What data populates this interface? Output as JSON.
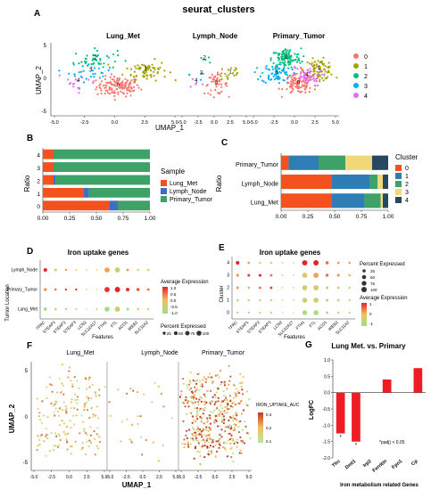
{
  "panelA": {
    "letter": "A",
    "title": "seurat_clusters",
    "facets": [
      "Lung_Met",
      "Lymph_Node",
      "Primary_Tumor"
    ],
    "xlabel": "UMAP_1",
    "ylabel": "UMAP_2",
    "xticks": [
      "-5.0",
      "-2.5",
      "0.0",
      "2.5",
      "5.0"
    ],
    "yticks": [
      "5",
      "0",
      "-5"
    ],
    "legend": [
      {
        "label": "0",
        "color": "#F8766D"
      },
      {
        "label": "1",
        "color": "#A3A500"
      },
      {
        "label": "2",
        "color": "#00BF7D"
      },
      {
        "label": "3",
        "color": "#00B0F6"
      },
      {
        "label": "4",
        "color": "#E76BF3"
      }
    ]
  },
  "panelB": {
    "letter": "B",
    "ylabel": "Ratio",
    "legend_title": "Sample",
    "series": [
      {
        "name": "Lung_Met",
        "color": "#F4511E"
      },
      {
        "name": "Lymph_Node",
        "color": "#3F6EC5"
      },
      {
        "name": "Primary_Tumor",
        "color": "#3EA167"
      }
    ],
    "categories": [
      "4",
      "3",
      "2",
      "1",
      "0"
    ],
    "xticks": [
      "0.00",
      "0.25",
      "0.50",
      "0.75",
      "1.00"
    ]
  },
  "panelC": {
    "letter": "C",
    "ylabel": "Ratio",
    "legend_title": "Cluster",
    "series": [
      {
        "name": "0",
        "color": "#F4511E"
      },
      {
        "name": "1",
        "color": "#2E7DB5"
      },
      {
        "name": "2",
        "color": "#3EA167"
      },
      {
        "name": "3",
        "color": "#F0D77A"
      },
      {
        "name": "4",
        "color": "#284760"
      }
    ],
    "categories": [
      "Primary_Tumor",
      "Lymph_Node",
      "Lung_Met"
    ],
    "xticks": [
      "0.00",
      "0.25",
      "0.50",
      "0.75",
      "1.00"
    ]
  },
  "panelD": {
    "letter": "D",
    "title": "Iron uptake genes",
    "ylabel": "Tumor Location",
    "xlabel": "Features",
    "rows": [
      "Lymph_Node",
      "Primary_Tumor",
      "Lung_Met"
    ],
    "genes": [
      "TFRC",
      "STEAP1",
      "STEAP2",
      "STEAP3",
      "LCN2",
      "SLC22A17",
      "FTH1",
      "FTL",
      "ACO1",
      "IREB2",
      "SLC11A2"
    ],
    "legend_expr_title": "Average Expression",
    "legend_expr_ticks": [
      "1.0",
      "0.5",
      "0.0",
      "-0.5",
      "-1.0"
    ],
    "legend_pct_title": "Percent Expressed",
    "legend_pct_ticks": [
      "25",
      "50",
      "75",
      "100"
    ]
  },
  "panelE": {
    "letter": "E",
    "title": "Iron uptake genes",
    "ylabel": "Cluster",
    "xlabel": "Features",
    "rows": [
      "4",
      "3",
      "2",
      "1",
      "0"
    ],
    "genes": [
      "TFRC",
      "STEAP1",
      "STEAP2",
      "STEAP3",
      "LCN2",
      "SLC22A17",
      "FTH1",
      "FTL",
      "ACO1",
      "IREB2",
      "SLC11A2"
    ],
    "legend_pct_title": "Percent Expressed",
    "legend_pct_ticks": [
      "25",
      "50",
      "75",
      "100"
    ],
    "legend_expr_title": "Average Expression",
    "legend_expr_ticks": [
      "1",
      "0",
      "-1"
    ]
  },
  "panelF": {
    "letter": "F",
    "facets": [
      "Lung_Met",
      "Lymph_Node",
      "Primary_Tumor"
    ],
    "xlabel": "UMAP_1",
    "ylabel": "UMAP_2",
    "xticks": [
      "-5.0",
      "-2.5",
      "0.0",
      "2.5",
      "5.0"
    ],
    "yticks": [
      "5",
      "0",
      "-5"
    ],
    "legend_title": "IRON_UPTAKE_AUC",
    "legend_ticks": [
      "0.3",
      "0.2",
      "0.1"
    ]
  },
  "panelG": {
    "letter": "G",
    "title": "Lung Met. vs. Primary",
    "ylabel": "LogFC",
    "xlabel": "Iron metabolism related Genes",
    "note": "*padj) < 0.05",
    "yticks": [
      "1.0",
      "0.5",
      "0.0",
      "-0.5",
      "-1.0",
      "-1.5",
      "-2.0"
    ],
    "bar_color": "#EE1C25"
  },
  "chart_data": [
    {
      "type": "scatter",
      "title": "seurat_clusters",
      "facets": [
        "Lung_Met",
        "Lymph_Node",
        "Primary_Tumor"
      ],
      "xlabel": "UMAP_1",
      "ylabel": "UMAP_2",
      "xlim": [
        -5,
        5
      ],
      "ylim": [
        -7,
        7
      ],
      "series": [
        {
          "name": "0",
          "centers": {
            "Lung_Met": [
              0.3,
              -1.5
            ],
            "Lymph_Node": [
              0.3,
              -1.0
            ],
            "Primary_Tumor": [
              0.5,
              -1.0
            ]
          }
        },
        {
          "name": "1",
          "centers": {
            "Lung_Met": [
              2.6,
              1.8
            ],
            "Lymph_Node": [
              2.5,
              1.2
            ],
            "Primary_Tumor": [
              3.0,
              2.0
            ]
          }
        },
        {
          "name": "2",
          "centers": {
            "Lung_Met": [
              -1.6,
              4.0
            ],
            "Lymph_Node": [
              -1.5,
              4.0
            ],
            "Primary_Tumor": [
              -1.0,
              4.2
            ]
          }
        },
        {
          "name": "3",
          "centers": {
            "Lung_Met": [
              -2.0,
              1.5
            ],
            "Lymph_Node": [
              -2.0,
              1.0
            ],
            "Primary_Tumor": [
              -2.2,
              1.2
            ]
          }
        },
        {
          "name": "4",
          "centers": {
            "Lung_Met": [
              -3.0,
              -0.5
            ],
            "Lymph_Node": [
              -2.8,
              -0.5
            ],
            "Primary_Tumor": [
              1.5,
              0.6
            ]
          }
        }
      ]
    },
    {
      "type": "bar",
      "stacked": true,
      "horizontal": true,
      "ylabel": "Ratio",
      "categories": [
        "4",
        "3",
        "2",
        "1",
        "0"
      ],
      "xlim": [
        0,
        1
      ],
      "series": [
        {
          "name": "Lung_Met",
          "values": [
            0.1,
            0.1,
            0.1,
            0.38,
            0.62
          ]
        },
        {
          "name": "Lymph_Node",
          "values": [
            0.0,
            0.0,
            0.02,
            0.05,
            0.08
          ]
        },
        {
          "name": "Primary_Tumor",
          "values": [
            0.9,
            0.9,
            0.88,
            0.57,
            0.3
          ]
        }
      ]
    },
    {
      "type": "bar",
      "stacked": true,
      "horizontal": true,
      "ylabel": "Ratio",
      "categories": [
        "Primary_Tumor",
        "Lymph_Node",
        "Lung_Met"
      ],
      "xlim": [
        0,
        1
      ],
      "series": [
        {
          "name": "0",
          "values": [
            0.07,
            0.47,
            0.47
          ]
        },
        {
          "name": "1",
          "values": [
            0.28,
            0.36,
            0.31
          ]
        },
        {
          "name": "2",
          "values": [
            0.25,
            0.07,
            0.15
          ]
        },
        {
          "name": "3",
          "values": [
            0.25,
            0.05,
            0.02
          ]
        },
        {
          "name": "4",
          "values": [
            0.15,
            0.05,
            0.05
          ]
        }
      ]
    },
    {
      "type": "scatter",
      "title": "Iron uptake genes",
      "xlabel": "Features",
      "ylabel": "Tumor Location",
      "categories_x": [
        "TFRC",
        "STEAP1",
        "STEAP2",
        "STEAP3",
        "LCN2",
        "SLC22A17",
        "FTH1",
        "FTL",
        "ACO1",
        "IREB2",
        "SLC11A2"
      ],
      "categories_y": [
        "Lymph_Node",
        "Primary_Tumor",
        "Lung_Met"
      ],
      "avg_expression": [
        [
          1.0,
          -0.5,
          0.3,
          -0.2,
          0.2,
          -0.5,
          0.2,
          -0.6,
          0.3,
          -0.5,
          0.1
        ],
        [
          0.3,
          0.6,
          0.8,
          0.9,
          0.0,
          0.0,
          0.9,
          1.0,
          0.9,
          0.7,
          0.5
        ],
        [
          -1.0,
          -0.6,
          -1.0,
          -0.6,
          -0.5,
          0.2,
          -1.0,
          -0.4,
          -1.0,
          -0.3,
          -0.4
        ]
      ],
      "pct_expressed": [
        [
          40,
          20,
          10,
          5,
          2,
          2,
          90,
          95,
          15,
          10,
          8
        ],
        [
          25,
          10,
          10,
          10,
          3,
          2,
          95,
          98,
          40,
          25,
          15
        ],
        [
          30,
          12,
          8,
          6,
          2,
          3,
          85,
          95,
          20,
          12,
          10
        ]
      ]
    },
    {
      "type": "scatter",
      "title": "Iron uptake genes",
      "xlabel": "Features",
      "ylabel": "Cluster",
      "categories_x": [
        "TFRC",
        "STEAP1",
        "STEAP2",
        "STEAP3",
        "LCN2",
        "SLC22A17",
        "FTH1",
        "FTL",
        "ACO1",
        "IREB2",
        "SLC11A2"
      ],
      "categories_y": [
        "4",
        "3",
        "2",
        "1",
        "0"
      ],
      "avg_expression": [
        [
          1.0,
          0.2,
          -0.5,
          -0.2,
          -0.5,
          -0.5,
          1.0,
          1.0,
          0.5,
          0.2,
          0.3
        ],
        [
          0.2,
          0.8,
          1.0,
          0.5,
          0.0,
          -0.5,
          -0.2,
          0.2,
          0.5,
          0.3,
          0.2
        ],
        [
          0.2,
          0.2,
          0.5,
          0.8,
          0.0,
          -0.5,
          -0.5,
          -0.3,
          0.0,
          0.0,
          0.0
        ],
        [
          -0.5,
          -0.5,
          -0.5,
          -0.5,
          -0.5,
          -0.5,
          -0.5,
          -0.5,
          -0.5,
          -0.5,
          -0.5
        ],
        [
          -0.8,
          -0.8,
          -0.8,
          -0.8,
          -0.8,
          -0.8,
          -0.8,
          -0.8,
          -0.8,
          -0.8,
          -0.8
        ]
      ],
      "pct_expressed": [
        [
          40,
          15,
          10,
          10,
          3,
          3,
          95,
          98,
          30,
          15,
          10
        ],
        [
          25,
          20,
          20,
          15,
          3,
          3,
          90,
          95,
          25,
          20,
          10
        ],
        [
          20,
          10,
          15,
          15,
          3,
          3,
          90,
          95,
          20,
          15,
          10
        ],
        [
          15,
          10,
          10,
          10,
          3,
          3,
          85,
          90,
          20,
          15,
          8
        ],
        [
          10,
          8,
          8,
          8,
          2,
          2,
          80,
          85,
          15,
          10,
          8
        ]
      ]
    },
    {
      "type": "scatter",
      "facets": [
        "Lung_Met",
        "Lymph_Node",
        "Primary_Tumor"
      ],
      "xlabel": "UMAP_1",
      "ylabel": "UMAP_2",
      "xlim": [
        -5,
        5
      ],
      "ylim": [
        -7,
        7
      ],
      "color_variable": "IRON_UPTAKE_AUC",
      "color_range": [
        0.1,
        0.3
      ]
    },
    {
      "type": "bar",
      "title": "Lung Met. vs. Primary",
      "xlabel": "Iron metabolism related Genes",
      "ylabel": "LogFC",
      "categories": [
        "Tfrc",
        "Dmt1",
        "Irp2",
        "Ferritin",
        "Fpn1",
        "Cp"
      ],
      "values": [
        -1.25,
        -1.5,
        0.0,
        0.4,
        0.0,
        0.75
      ],
      "significant": [
        "Tfrc",
        "Dmt1"
      ],
      "ylim": [
        -2,
        1
      ]
    }
  ]
}
